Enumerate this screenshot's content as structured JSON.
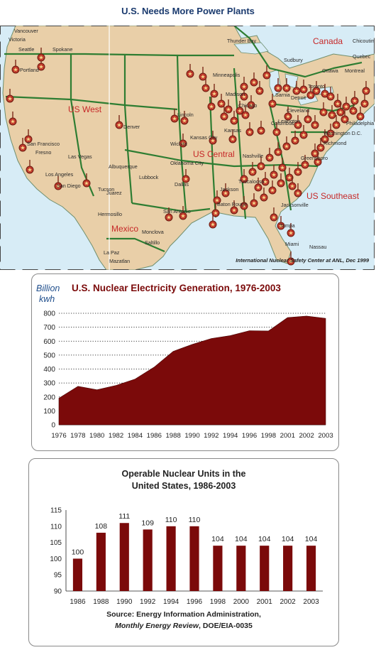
{
  "page": {
    "title": "U.S. Needs More Power Plants"
  },
  "map": {
    "credit": "International Nuclear Safety Center at ANL, Dec 1999",
    "regions": [
      "US West",
      "US Central",
      "US Southeast",
      "Mexico",
      "Canada"
    ],
    "cities": [
      "Vancouver",
      "Victoria",
      "Seattle",
      "Spokane",
      "Portland",
      "Thunder Bay",
      "Sudbury",
      "Ottawa",
      "Montreal",
      "Chicoutimi",
      "Quebec",
      "Minneapolis",
      "Madison",
      "Chicago",
      "Sarnia",
      "Toronto",
      "Detroit",
      "Cleveland",
      "Columbus",
      "Philadelphia",
      "Lincoln",
      "Kansas City",
      "Kansas",
      "Denver",
      "Wichita",
      "San Francisco",
      "Fresno",
      "Las Vegas",
      "Los Angeles",
      "San Diego",
      "Tucson",
      "Albuquerque",
      "Lubbock",
      "Oklahoma City",
      "Dallas",
      "Lexington",
      "Nashville",
      "Greensboro",
      "Richmond",
      "Washington D.C.",
      "Tuscaloosa",
      "Jackson",
      "Baton Rouge",
      "Jacksonville",
      "San Antonio",
      "Juarez",
      "Hermosillo",
      "La Paz",
      "Mazatlan",
      "Monclova",
      "Saltillo",
      "Tampa",
      "Miami",
      "Nassau"
    ],
    "colors": {
      "land": "#e9cfa8",
      "water": "#d7ecf6",
      "border": "#2e7d32",
      "plant": "#b23a28",
      "region_text": "#c62828"
    }
  },
  "chart1": {
    "annotation_line1": "Billion",
    "annotation_line2": "kwh",
    "chart_data": {
      "type": "area",
      "title": "U.S. Nuclear Electricity Generation, 1976-2003",
      "xlabel": "",
      "ylabel": "",
      "x": [
        "1976",
        "1978",
        "1980",
        "1982",
        "1984",
        "1986",
        "1988",
        "1990",
        "1992",
        "1994",
        "1996",
        "1998",
        "2001",
        "2002",
        "2003"
      ],
      "x_tick_labels": [
        "1976",
        "1978",
        "1980",
        "1982",
        "1984",
        "1986",
        "1988",
        "1990",
        "1992",
        "1994",
        "1996",
        "1998",
        "2001",
        "2002",
        "2003"
      ],
      "values": [
        191,
        276,
        251,
        283,
        328,
        414,
        527,
        577,
        619,
        640,
        675,
        673,
        769,
        780,
        764
      ],
      "ylim": [
        0,
        800
      ],
      "yticks": [
        0,
        100,
        200,
        300,
        400,
        500,
        600,
        700,
        800
      ],
      "grid": "horizontal",
      "fill_color": "#7b0a0a"
    }
  },
  "chart2": {
    "source_line1": "Source: Energy Information Administration,",
    "source_line2_italic": "Monthly Energy Review",
    "source_line2_rest": ", DOE/EIA-0035",
    "chart_data": {
      "type": "bar",
      "title_line1": "Operable Nuclear Units in the",
      "title_line2": "United States, 1986-2003",
      "xlabel": "",
      "ylabel": "",
      "categories": [
        "1986",
        "1988",
        "1990",
        "1992",
        "1994",
        "1996",
        "1998",
        "2000",
        "2001",
        "2002",
        "2003"
      ],
      "values": [
        100,
        108,
        111,
        109,
        110,
        110,
        104,
        104,
        104,
        104,
        104
      ],
      "data_labels": [
        "100",
        "108",
        "111",
        "109",
        "110",
        "110",
        "104",
        "104",
        "104",
        "104",
        "104"
      ],
      "ylim": [
        90,
        115
      ],
      "yticks": [
        90,
        95,
        100,
        105,
        110,
        115
      ],
      "grid": "none",
      "bar_color": "#7b0a0a"
    }
  }
}
